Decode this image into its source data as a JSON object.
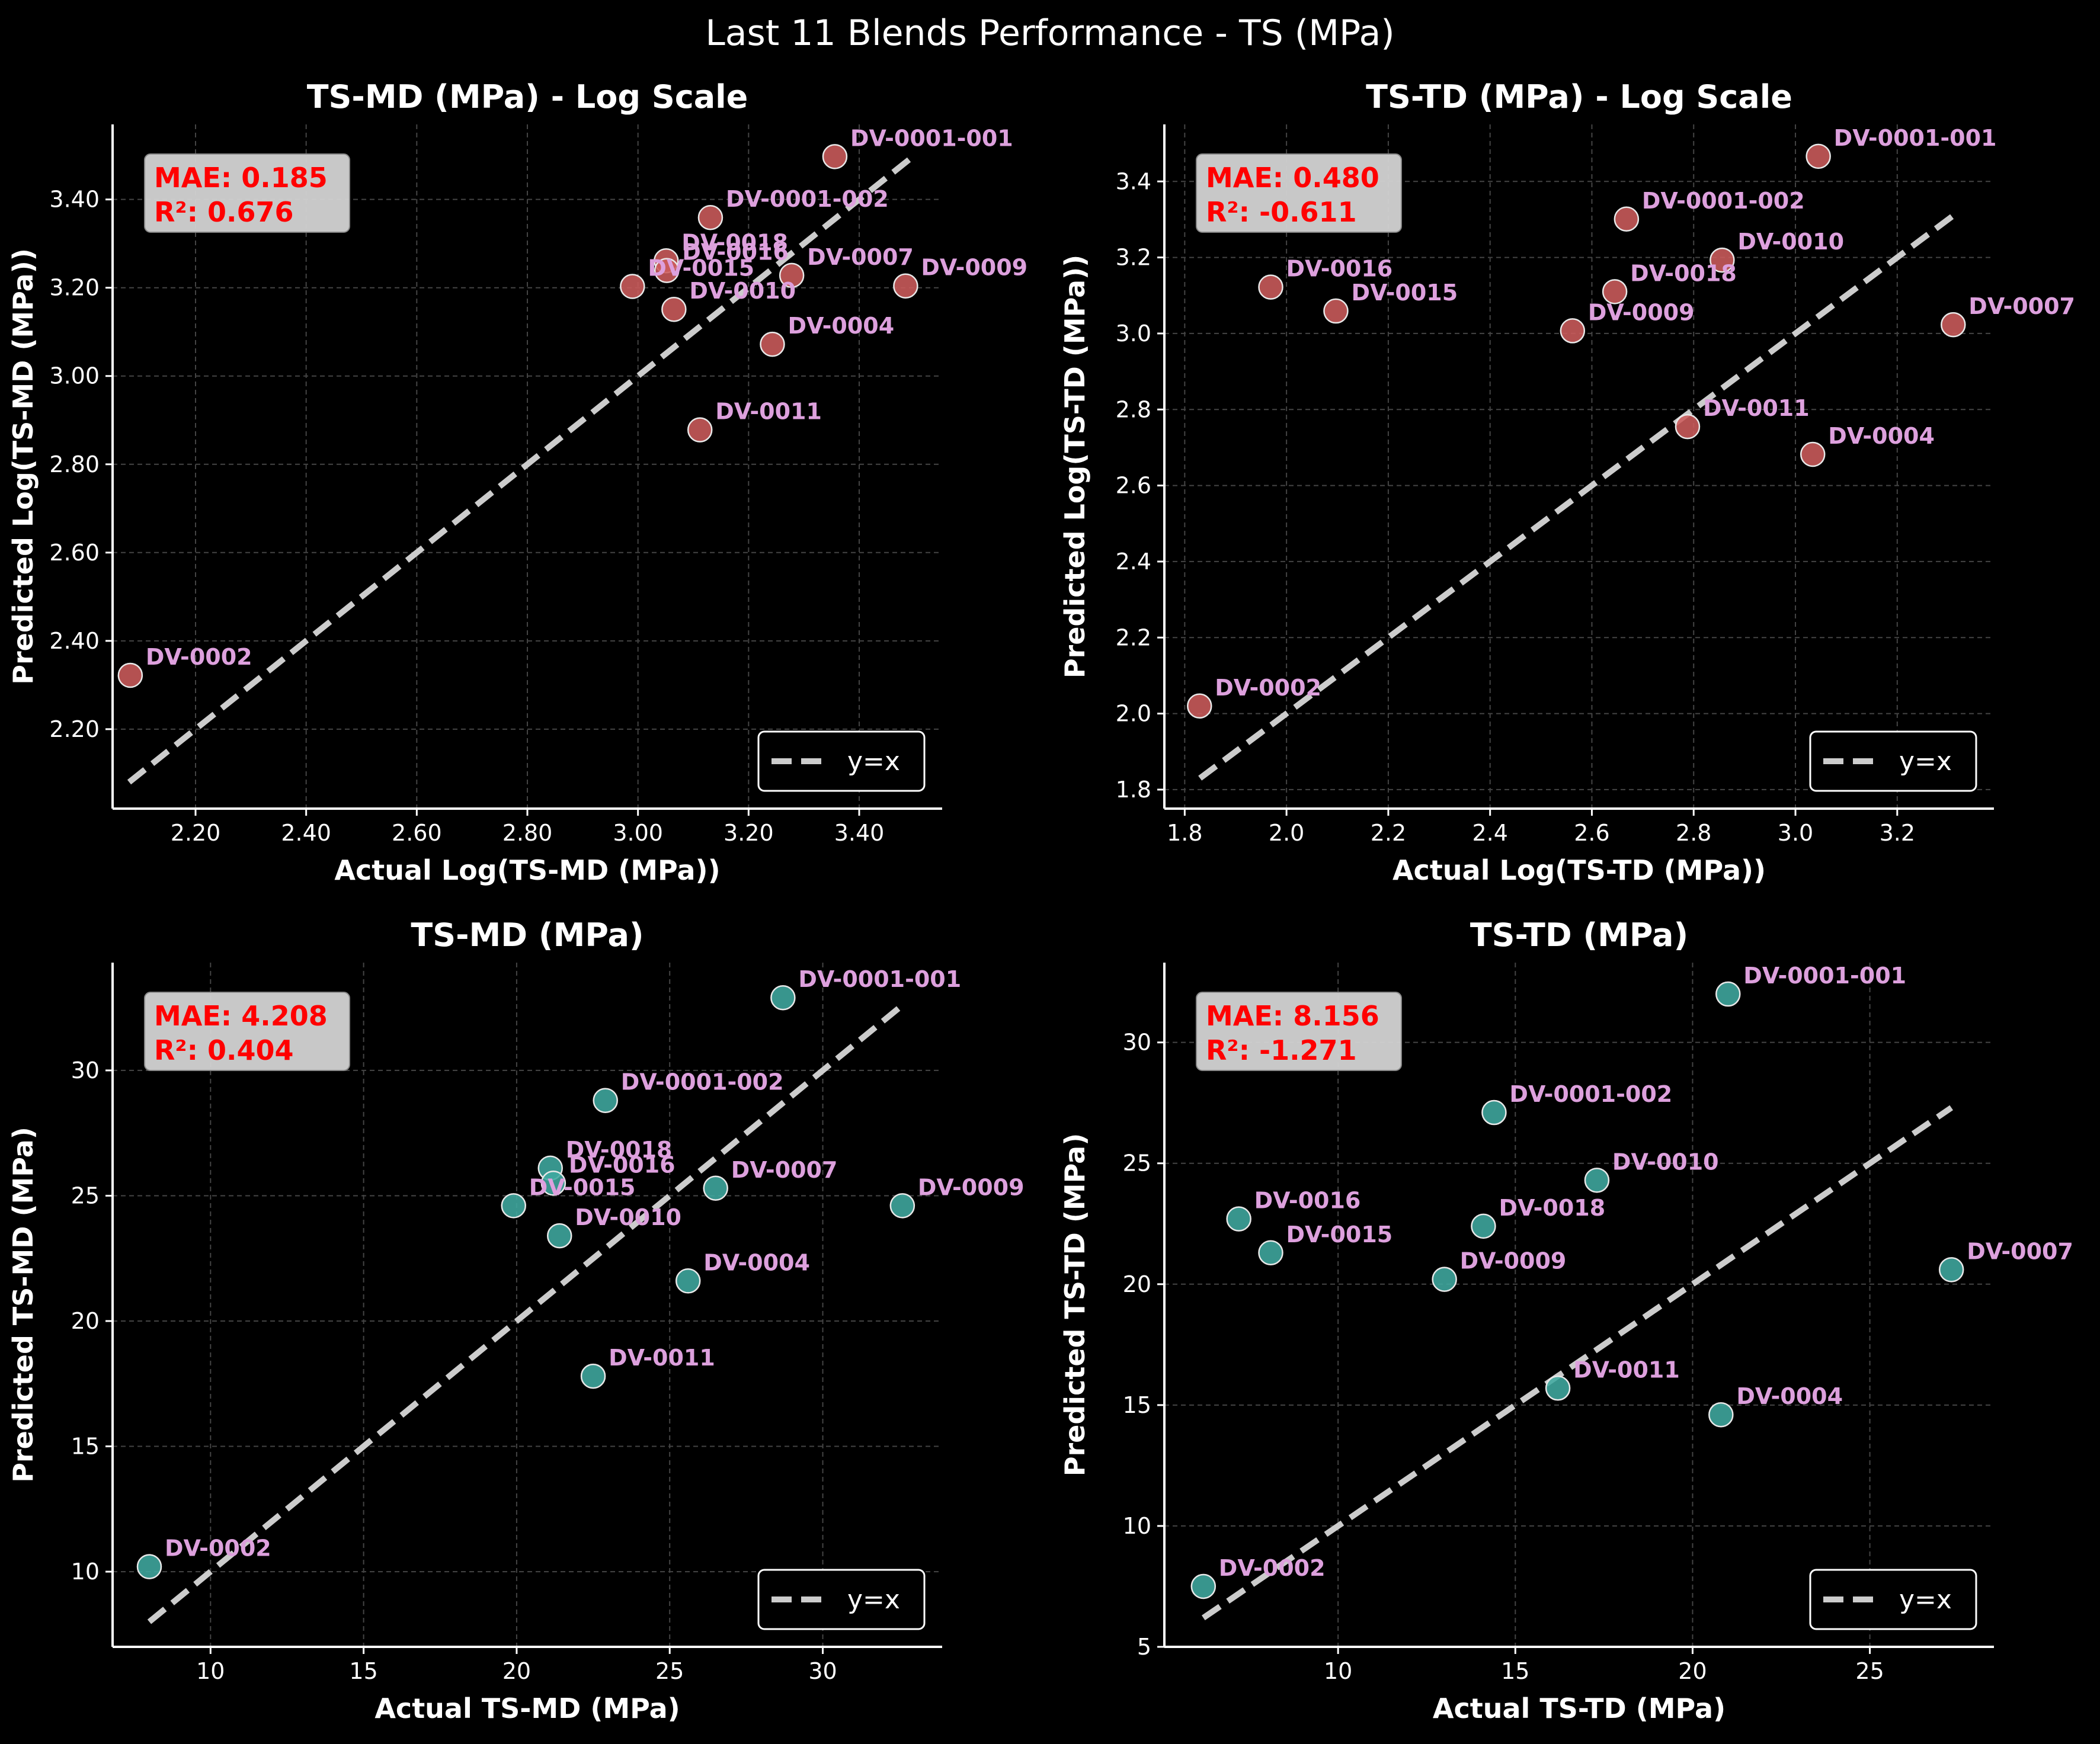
{
  "figure": {
    "title": "Last 11 Blends Performance - TS (MPa)"
  },
  "colors": {
    "background": "#000000",
    "log_points": "#cd5c5c",
    "linear_points": "#40aaa0",
    "point_edge": "#e8e8e8",
    "point_label": "#dda0dd",
    "diagonal": "#cccccc",
    "metrics_text": "#ff0000",
    "metrics_box": "#d3d3d3",
    "axis": "#ffffff",
    "grid": "#444444"
  },
  "chart_data": [
    {
      "type": "scatter",
      "title": "TS-MD (MPa) - Log Scale",
      "xlabel": "Actual Log(TS-MD (MPa))",
      "ylabel": "Predicted Log(TS-MD (MPa))",
      "xlim": [
        2.05,
        3.55
      ],
      "ylim": [
        2.02,
        3.57
      ],
      "xticks": [
        2.2,
        2.4,
        2.6,
        2.8,
        3.0,
        3.2,
        3.4
      ],
      "yticks": [
        2.2,
        2.4,
        2.6,
        2.8,
        3.0,
        3.2,
        3.4
      ],
      "tick_format": "2",
      "metrics": {
        "mae": "MAE: 0.185",
        "r2": "R²: 0.676"
      },
      "legend": {
        "label": "y=x",
        "position": "lower right"
      },
      "identity_line": [
        2.08,
        3.49
      ],
      "point_color": "log",
      "points": [
        {
          "name": "DV-0001-001",
          "x": 3.356,
          "y": 3.497
        },
        {
          "name": "DV-0001-002",
          "x": 3.131,
          "y": 3.359
        },
        {
          "name": "DV-0018",
          "x": 3.051,
          "y": 3.261
        },
        {
          "name": "DV-0016",
          "x": 3.052,
          "y": 3.239
        },
        {
          "name": "DV-0015",
          "x": 2.99,
          "y": 3.203
        },
        {
          "name": "DV-0007",
          "x": 3.278,
          "y": 3.228
        },
        {
          "name": "DV-0009",
          "x": 3.484,
          "y": 3.204
        },
        {
          "name": "DV-0010",
          "x": 3.065,
          "y": 3.151
        },
        {
          "name": "DV-0004",
          "x": 3.243,
          "y": 3.072
        },
        {
          "name": "DV-0011",
          "x": 3.112,
          "y": 2.878
        },
        {
          "name": "DV-0002",
          "x": 2.082,
          "y": 2.322
        }
      ]
    },
    {
      "type": "scatter",
      "title": "TS-TD (MPa) - Log Scale",
      "xlabel": "Actual Log(TS-TD (MPa))",
      "ylabel": "Predicted Log(TS-TD (MPa))",
      "xlim": [
        1.76,
        3.39
      ],
      "ylim": [
        1.75,
        3.55
      ],
      "xticks": [
        1.8,
        2.0,
        2.2,
        2.4,
        2.6,
        2.8,
        3.0,
        3.2
      ],
      "yticks": [
        1.8,
        2.0,
        2.2,
        2.4,
        2.6,
        2.8,
        3.0,
        3.2,
        3.4
      ],
      "tick_format": "1",
      "metrics": {
        "mae": "MAE: 0.480",
        "r2": "R²: -0.611"
      },
      "legend": {
        "label": "y=x",
        "position": "lower right"
      },
      "identity_line": [
        1.83,
        3.31
      ],
      "point_color": "log",
      "points": [
        {
          "name": "DV-0001-001",
          "x": 3.045,
          "y": 3.466
        },
        {
          "name": "DV-0001-002",
          "x": 2.668,
          "y": 3.301
        },
        {
          "name": "DV-0010",
          "x": 2.856,
          "y": 3.193
        },
        {
          "name": "DV-0016",
          "x": 1.969,
          "y": 3.122
        },
        {
          "name": "DV-0018",
          "x": 2.645,
          "y": 3.11
        },
        {
          "name": "DV-0015",
          "x": 2.097,
          "y": 3.059
        },
        {
          "name": "DV-0009",
          "x": 2.562,
          "y": 3.007
        },
        {
          "name": "DV-0007",
          "x": 3.31,
          "y": 3.023
        },
        {
          "name": "DV-0011",
          "x": 2.788,
          "y": 2.755
        },
        {
          "name": "DV-0004",
          "x": 3.034,
          "y": 2.682
        },
        {
          "name": "DV-0002",
          "x": 1.829,
          "y": 2.02
        }
      ]
    },
    {
      "type": "scatter",
      "title": "TS-MD (MPa)",
      "xlabel": "Actual TS-MD (MPa)",
      "ylabel": "Predicted TS-MD (MPa)",
      "xlim": [
        6.8,
        33.9
      ],
      "ylim": [
        7.0,
        34.3
      ],
      "xticks": [
        10,
        15,
        20,
        25,
        30
      ],
      "yticks": [
        10,
        15,
        20,
        25,
        30
      ],
      "tick_format": "0",
      "metrics": {
        "mae": "MAE: 4.208",
        "r2": "R²: 0.404"
      },
      "legend": {
        "label": "y=x",
        "position": "lower right"
      },
      "identity_line": [
        8.0,
        32.6
      ],
      "point_color": "linear",
      "points": [
        {
          "name": "DV-0001-001",
          "x": 28.7,
          "y": 32.9
        },
        {
          "name": "DV-0001-002",
          "x": 22.9,
          "y": 28.8
        },
        {
          "name": "DV-0018",
          "x": 21.1,
          "y": 26.1
        },
        {
          "name": "DV-0016",
          "x": 21.2,
          "y": 25.5
        },
        {
          "name": "DV-0015",
          "x": 19.9,
          "y": 24.6
        },
        {
          "name": "DV-0007",
          "x": 26.5,
          "y": 25.3
        },
        {
          "name": "DV-0009",
          "x": 32.6,
          "y": 24.6
        },
        {
          "name": "DV-0010",
          "x": 21.4,
          "y": 23.4
        },
        {
          "name": "DV-0004",
          "x": 25.6,
          "y": 21.6
        },
        {
          "name": "DV-0011",
          "x": 22.5,
          "y": 17.8
        },
        {
          "name": "DV-0002",
          "x": 8.0,
          "y": 10.2
        }
      ]
    },
    {
      "type": "scatter",
      "title": "TS-TD (MPa)",
      "xlabel": "Actual TS-TD (MPa)",
      "ylabel": "Predicted TS-TD (MPa)",
      "xlim": [
        5.1,
        28.5
      ],
      "ylim": [
        5.0,
        33.3
      ],
      "xticks": [
        10,
        15,
        20,
        25
      ],
      "yticks": [
        5,
        10,
        15,
        20,
        25,
        30
      ],
      "tick_format": "0",
      "metrics": {
        "mae": "MAE: 8.156",
        "r2": "R²: -1.271"
      },
      "legend": {
        "label": "y=x",
        "position": "lower right"
      },
      "identity_line": [
        6.2,
        27.3
      ],
      "point_color": "linear",
      "points": [
        {
          "name": "DV-0001-001",
          "x": 21.0,
          "y": 32.0
        },
        {
          "name": "DV-0001-002",
          "x": 14.4,
          "y": 27.1
        },
        {
          "name": "DV-0010",
          "x": 17.3,
          "y": 24.3
        },
        {
          "name": "DV-0016",
          "x": 7.2,
          "y": 22.7
        },
        {
          "name": "DV-0018",
          "x": 14.1,
          "y": 22.4
        },
        {
          "name": "DV-0015",
          "x": 8.1,
          "y": 21.3
        },
        {
          "name": "DV-0009",
          "x": 13.0,
          "y": 20.2
        },
        {
          "name": "DV-0007",
          "x": 27.3,
          "y": 20.6
        },
        {
          "name": "DV-0011",
          "x": 16.2,
          "y": 15.7
        },
        {
          "name": "DV-0004",
          "x": 20.8,
          "y": 14.6
        },
        {
          "name": "DV-0002",
          "x": 6.2,
          "y": 7.5
        }
      ]
    }
  ]
}
